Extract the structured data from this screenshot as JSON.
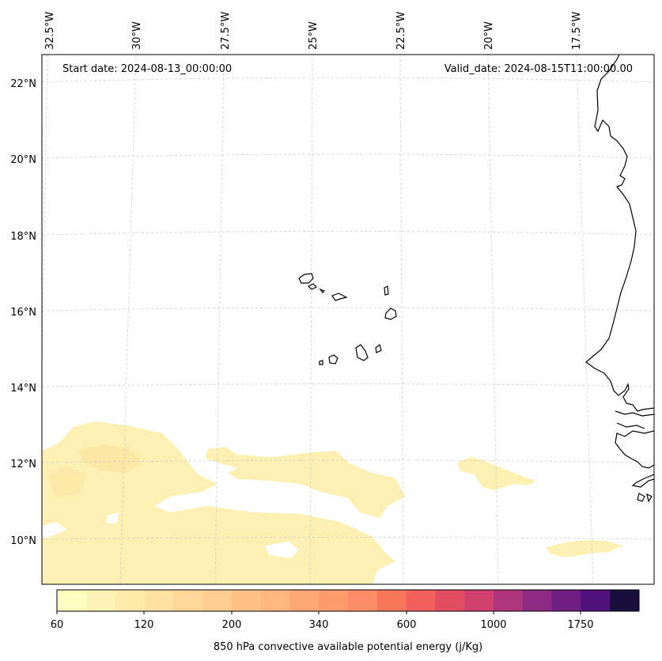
{
  "map": {
    "start_date": "Start date: 2024-08-13_00:00:00",
    "valid_date": "Valid_date: 2024-08-15T11:00:00.00",
    "lon_labels": [
      "32.5°W",
      "30°W",
      "27.5°W",
      "25°W",
      "22.5°W",
      "20°W",
      "17.5°W"
    ],
    "lat_labels": [
      "22°N",
      "20°N",
      "18°N",
      "16°N",
      "14°N",
      "12°N",
      "10°N"
    ]
  },
  "colorbar": {
    "label": "850 hPa convective available potential energy (j/Kg)",
    "tick_labels": [
      "60",
      "120",
      "200",
      "340",
      "600",
      "1000",
      "1750"
    ],
    "colors": [
      "#fcfdbf",
      "#fcf4b6",
      "#fdebac",
      "#fde2a3",
      "#fed799",
      "#fecd90",
      "#fec287",
      "#feb77e",
      "#fea973",
      "#fd9b6b",
      "#fb8d67",
      "#f8765c",
      "#f1605d",
      "#e24d61",
      "#d0416f",
      "#b1357c",
      "#8c2981",
      "#6f1f81",
      "#51127c",
      "#180f3d"
    ]
  },
  "colors": {
    "coastline": "#000000",
    "grid": "#cccccc",
    "cape_low": "#fcf3b5",
    "cape_mid": "#fbe7a6"
  }
}
